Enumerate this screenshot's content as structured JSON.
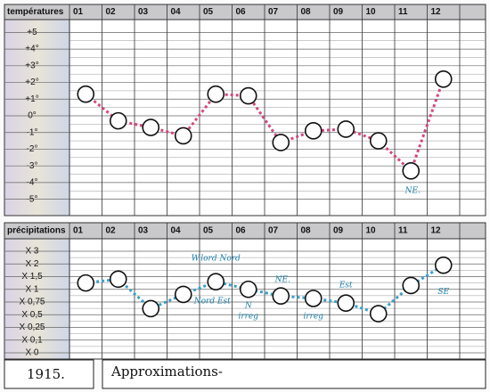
{
  "chart_data": [
    {
      "type": "line",
      "title": "températures",
      "categories": [
        "01",
        "02",
        "03",
        "04",
        "05",
        "06",
        "07",
        "08",
        "09",
        "10",
        "11",
        "12"
      ],
      "values": [
        1.3,
        -0.3,
        -0.7,
        -1.2,
        1.3,
        1.2,
        -1.6,
        -0.9,
        -0.8,
        -1.5,
        -3.3,
        2.2
      ],
      "color": "#d6457f",
      "ylim": [
        -5.5,
        5.5
      ],
      "yticks": [
        {
          "value": 5,
          "label": "+5"
        },
        {
          "value": 4,
          "label": "+4°"
        },
        {
          "value": 3,
          "label": "+3°"
        },
        {
          "value": 2,
          "label": "+2°"
        },
        {
          "value": 1,
          "label": "+1°"
        },
        {
          "value": 0,
          "label": "0°"
        },
        {
          "value": -1,
          "label": "-1°"
        },
        {
          "value": -2,
          "label": "-2°"
        },
        {
          "value": -3,
          "label": "-3°"
        },
        {
          "value": -4,
          "label": "-4°"
        },
        {
          "value": -5,
          "label": "-5°"
        }
      ],
      "annotations": [
        "NE."
      ]
    },
    {
      "type": "line",
      "title": "précipitations",
      "categories": [
        "01",
        "02",
        "03",
        "04",
        "05",
        "06",
        "07",
        "08",
        "09",
        "10",
        "11",
        "12"
      ],
      "values": [
        1.25,
        1.4,
        0.62,
        0.9,
        1.3,
        1.0,
        0.87,
        0.82,
        0.73,
        0.52,
        1.15,
        1.95
      ],
      "color": "#3aa0c8",
      "yticks": [
        {
          "value": 3,
          "label": "X 3"
        },
        {
          "value": 2,
          "label": "X 2"
        },
        {
          "value": 1.5,
          "label": "X 1,5"
        },
        {
          "value": 1,
          "label": "X 1"
        },
        {
          "value": 0.75,
          "label": "X 0,75"
        },
        {
          "value": 0.5,
          "label": "X 0,5"
        },
        {
          "value": 0.25,
          "label": "X 0,25"
        },
        {
          "value": 0.1,
          "label": "X 0,1"
        },
        {
          "value": 0,
          "label": "X 0"
        }
      ],
      "annotations": [
        "W.lord Nord",
        "Nord Est",
        "N",
        "irreg",
        "NE.",
        "irreg",
        "Est",
        "SE"
      ]
    }
  ],
  "footer": {
    "year": "1915.",
    "note": "Approximations-"
  }
}
